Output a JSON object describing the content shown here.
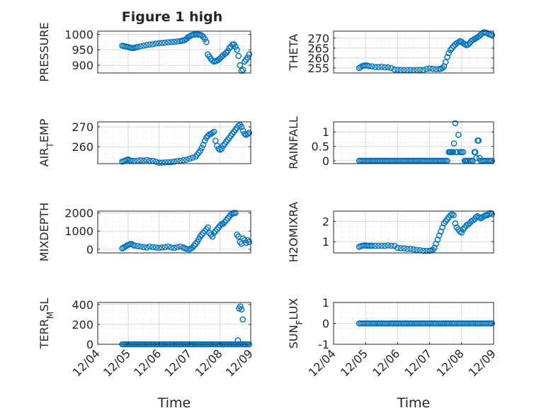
{
  "figure": {
    "title": "Figure 1 high",
    "marker_color": "#0072BD",
    "axes_color": "#262626",
    "grid_color": "#d9d9d9"
  },
  "chart_data": [
    {
      "type": "scatter",
      "ylabel": "PRESSURE",
      "ylim": [
        875,
        1010
      ],
      "yticks": [
        900,
        950,
        1000
      ],
      "ytick_labels": [
        "900",
        "950",
        "1000"
      ],
      "xlim": [
        0,
        5
      ],
      "xticks": [],
      "show_xticklabels": false,
      "x": [
        0.8,
        0.85,
        0.9,
        0.95,
        1.0,
        1.05,
        1.1,
        1.15,
        1.2,
        1.25,
        1.3,
        1.4,
        1.5,
        1.6,
        1.7,
        1.8,
        1.9,
        2.0,
        2.1,
        2.2,
        2.3,
        2.4,
        2.5,
        2.6,
        2.7,
        2.75,
        2.8,
        2.85,
        2.9,
        2.95,
        3.0,
        3.05,
        3.1,
        3.15,
        3.2,
        3.25,
        3.3,
        3.35,
        3.4,
        3.45,
        3.5,
        3.55,
        3.6,
        3.65,
        3.7,
        3.75,
        3.8,
        3.85,
        3.9,
        3.95,
        4.0,
        4.05,
        4.1,
        4.15,
        4.2,
        4.25,
        4.3,
        4.35,
        4.4,
        4.45,
        4.5,
        4.55,
        4.6,
        4.65,
        4.7,
        4.75,
        4.8,
        4.85,
        4.9,
        4.95
      ],
      "y": [
        963,
        962,
        961,
        960,
        959,
        957,
        956,
        955,
        956,
        958,
        959,
        961,
        963,
        965,
        967,
        968,
        970,
        971,
        972,
        973,
        974,
        975,
        976,
        977,
        978,
        979,
        980,
        982,
        985,
        990,
        993,
        996,
        998,
        999,
        1000,
        1000,
        999,
        998,
        996,
        992,
        985,
        975,
        935,
        928,
        920,
        915,
        912,
        913,
        915,
        918,
        922,
        928,
        932,
        936,
        940,
        946,
        955,
        960,
        966,
        968,
        960,
        950,
        930,
        900,
        882,
        885,
        912,
        918,
        925,
        935
      ]
    },
    {
      "type": "scatter",
      "ylabel": "THETA",
      "ylim": [
        252.5,
        273.5
      ],
      "yticks": [
        255,
        260,
        265,
        270
      ],
      "ytick_labels": [
        "255",
        "260",
        "265",
        "270"
      ],
      "xlim": [
        0,
        5
      ],
      "xticks": [],
      "show_xticklabels": false,
      "x": [
        0.8,
        0.85,
        0.9,
        0.95,
        1.0,
        1.05,
        1.1,
        1.2,
        1.3,
        1.4,
        1.5,
        1.6,
        1.7,
        1.8,
        1.9,
        2.0,
        2.1,
        2.2,
        2.3,
        2.4,
        2.5,
        2.6,
        2.7,
        2.8,
        2.9,
        3.0,
        3.1,
        3.2,
        3.3,
        3.35,
        3.4,
        3.45,
        3.5,
        3.55,
        3.6,
        3.65,
        3.7,
        3.75,
        3.8,
        3.85,
        3.9,
        3.95,
        4.0,
        4.05,
        4.1,
        4.15,
        4.2,
        4.25,
        4.3,
        4.35,
        4.4,
        4.45,
        4.5,
        4.55,
        4.6,
        4.65,
        4.7,
        4.75,
        4.8,
        4.85,
        4.9,
        4.95
      ],
      "y": [
        255,
        255.5,
        256,
        256.2,
        256.3,
        256.2,
        256,
        255.8,
        255.5,
        255.5,
        255.6,
        255.4,
        255.3,
        255,
        254.2,
        254.1,
        254,
        254,
        254,
        254,
        253.9,
        254,
        254.1,
        254,
        254.5,
        254.8,
        254.6,
        254.4,
        254.5,
        254.6,
        255,
        255.8,
        258,
        260.5,
        262.5,
        264,
        265,
        266,
        266.8,
        267.5,
        268,
        268.5,
        268.2,
        267.5,
        267,
        266.5,
        266.8,
        267.5,
        268.5,
        269,
        269.5,
        270,
        270.5,
        271,
        271.8,
        272.5,
        273,
        272.8,
        272.5,
        272,
        271.8,
        271.5
      ]
    },
    {
      "type": "scatter",
      "ylabel": "AIR_TEMP",
      "ylim": [
        251.5,
        272.5
      ],
      "yticks": [
        260,
        270
      ],
      "ytick_labels": [
        "260",
        "270"
      ],
      "xlim": [
        0,
        5
      ],
      "xticks": [],
      "show_xticklabels": false,
      "x": [
        0.8,
        0.85,
        0.9,
        0.95,
        1.0,
        1.05,
        1.1,
        1.2,
        1.3,
        1.4,
        1.5,
        1.6,
        1.7,
        1.8,
        1.9,
        2.0,
        2.1,
        2.2,
        2.3,
        2.4,
        2.5,
        2.6,
        2.7,
        2.8,
        2.9,
        3.0,
        3.1,
        3.2,
        3.25,
        3.3,
        3.35,
        3.4,
        3.45,
        3.5,
        3.55,
        3.6,
        3.65,
        3.7,
        3.75,
        3.8,
        3.85,
        3.9,
        3.95,
        4.0,
        4.05,
        4.1,
        4.15,
        4.2,
        4.25,
        4.3,
        4.35,
        4.4,
        4.45,
        4.5,
        4.55,
        4.6,
        4.65,
        4.7,
        4.75,
        4.8,
        4.85,
        4.9,
        4.95
      ],
      "y": [
        252.5,
        252.8,
        253,
        253.4,
        253.6,
        253.2,
        253,
        252.9,
        253,
        253.2,
        253.1,
        253.3,
        253,
        252.9,
        252.5,
        252,
        252,
        252.1,
        252.2,
        252.3,
        252.5,
        252.8,
        253,
        253.2,
        253.5,
        254,
        254.5,
        255,
        256,
        257,
        258,
        259.5,
        261,
        263,
        264.5,
        265.5,
        266.2,
        266.5,
        267,
        267.5,
        263,
        260.5,
        259,
        258.5,
        259,
        260.5,
        261.5,
        262.5,
        263.5,
        264.5,
        265.5,
        266.5,
        267.5,
        268.5,
        269.5,
        270.5,
        271,
        270,
        268,
        266.5,
        266,
        266.5,
        267
      ]
    },
    {
      "type": "scatter",
      "ylabel": "RAINFALL",
      "ylim": [
        -0.1,
        1.35
      ],
      "yticks": [
        0,
        0.5,
        1
      ],
      "ytick_labels": [
        "0",
        "0.5",
        "1"
      ],
      "xlim": [
        0,
        5
      ],
      "xticks": [],
      "show_xticklabels": false,
      "x": [
        0.8,
        0.85,
        0.9,
        0.95,
        1.0,
        1.05,
        1.1,
        1.15,
        1.2,
        1.25,
        1.3,
        1.35,
        1.4,
        1.45,
        1.5,
        1.55,
        1.6,
        1.65,
        1.7,
        1.75,
        1.8,
        1.85,
        1.9,
        1.95,
        2.0,
        2.05,
        2.1,
        2.15,
        2.2,
        2.25,
        2.3,
        2.35,
        2.4,
        2.45,
        2.5,
        2.55,
        2.6,
        2.65,
        2.7,
        2.75,
        2.8,
        2.85,
        2.9,
        2.95,
        3.0,
        3.05,
        3.1,
        3.15,
        3.2,
        3.25,
        3.3,
        3.35,
        3.4,
        3.45,
        3.5,
        3.55,
        3.6,
        3.63,
        3.66,
        3.7,
        3.73,
        3.76,
        3.8,
        3.83,
        3.86,
        3.9,
        3.95,
        4.0,
        4.05,
        4.1,
        4.13,
        4.16,
        4.2,
        4.25,
        4.3,
        4.35,
        4.4,
        4.43,
        4.46,
        4.5,
        4.53,
        4.56,
        4.6,
        4.65,
        4.7,
        4.75,
        4.8,
        4.85,
        4.9,
        4.95
      ],
      "y": [
        0,
        0,
        0,
        0,
        0,
        0,
        0,
        0,
        0,
        0,
        0,
        0,
        0,
        0,
        0,
        0,
        0,
        0,
        0,
        0,
        0,
        0,
        0,
        0,
        0,
        0,
        0,
        0,
        0,
        0,
        0,
        0,
        0,
        0,
        0,
        0,
        0,
        0,
        0,
        0,
        0,
        0,
        0,
        0,
        0,
        0,
        0,
        0,
        0,
        0,
        0,
        0,
        0,
        0,
        0,
        0,
        0.3,
        0.3,
        0.3,
        0.3,
        0.3,
        0.6,
        1.3,
        0.3,
        0.3,
        0.9,
        0.3,
        0.3,
        0.3,
        0,
        0,
        0,
        0,
        0,
        0,
        0,
        0.3,
        0.3,
        0.1,
        0.7,
        0.7,
        0.1,
        0,
        0,
        0,
        0,
        0,
        0,
        0,
        0
      ]
    },
    {
      "type": "scatter",
      "ylabel": "MIXDEPTH",
      "ylim": [
        -200,
        2100
      ],
      "yticks": [
        0,
        1000,
        2000
      ],
      "ytick_labels": [
        "0",
        "1000",
        "2000"
      ],
      "xlim": [
        0,
        5
      ],
      "xticks": [],
      "show_xticklabels": false,
      "x": [
        0.8,
        0.85,
        0.9,
        0.95,
        1.0,
        1.05,
        1.1,
        1.15,
        1.2,
        1.3,
        1.4,
        1.5,
        1.6,
        1.7,
        1.8,
        1.9,
        2.0,
        2.1,
        2.2,
        2.3,
        2.4,
        2.5,
        2.6,
        2.7,
        2.8,
        2.85,
        2.9,
        3.0,
        3.05,
        3.1,
        3.15,
        3.2,
        3.25,
        3.3,
        3.35,
        3.4,
        3.45,
        3.5,
        3.55,
        3.6,
        3.65,
        3.7,
        3.75,
        3.8,
        3.85,
        3.9,
        3.95,
        4.0,
        4.05,
        4.1,
        4.15,
        4.2,
        4.25,
        4.3,
        4.35,
        4.4,
        4.45,
        4.5,
        4.55,
        4.6,
        4.65,
        4.7,
        4.75,
        4.8,
        4.85,
        4.9,
        4.95
      ],
      "y": [
        50,
        100,
        150,
        200,
        250,
        280,
        300,
        250,
        200,
        180,
        150,
        120,
        100,
        150,
        120,
        100,
        80,
        100,
        120,
        150,
        100,
        80,
        120,
        150,
        100,
        50,
        20,
        0,
        50,
        100,
        200,
        300,
        400,
        550,
        700,
        800,
        900,
        1000,
        1100,
        1200,
        900,
        800,
        700,
        900,
        1000,
        1100,
        1200,
        1300,
        1400,
        1400,
        1500,
        1600,
        1700,
        1800,
        1900,
        1950,
        2000,
        2000,
        800,
        700,
        400,
        300,
        600,
        500,
        350,
        500,
        400
      ]
    },
    {
      "type": "scatter",
      "ylabel": "H2OMIXRA",
      "ylim": [
        0.45,
        2.5
      ],
      "yticks": [
        1,
        2
      ],
      "ytick_labels": [
        "1",
        "2"
      ],
      "xlim": [
        0,
        5
      ],
      "xticks": [],
      "show_xticklabels": false,
      "x": [
        0.8,
        0.85,
        0.9,
        0.95,
        1.0,
        1.05,
        1.1,
        1.15,
        1.2,
        1.3,
        1.4,
        1.5,
        1.6,
        1.7,
        1.8,
        1.9,
        2.0,
        2.1,
        2.2,
        2.3,
        2.4,
        2.5,
        2.6,
        2.7,
        2.8,
        2.9,
        3.0,
        3.05,
        3.1,
        3.15,
        3.2,
        3.25,
        3.3,
        3.35,
        3.4,
        3.45,
        3.5,
        3.55,
        3.6,
        3.65,
        3.7,
        3.75,
        3.8,
        3.85,
        3.9,
        3.95,
        4.0,
        4.05,
        4.1,
        4.15,
        4.2,
        4.25,
        4.3,
        4.35,
        4.4,
        4.45,
        4.5,
        4.55,
        4.6,
        4.65,
        4.7,
        4.75,
        4.8,
        4.85,
        4.9,
        4.95
      ],
      "y": [
        0.75,
        0.78,
        0.8,
        0.82,
        0.82,
        0.8,
        0.8,
        0.8,
        0.8,
        0.8,
        0.8,
        0.8,
        0.8,
        0.82,
        0.8,
        0.8,
        0.7,
        0.68,
        0.68,
        0.65,
        0.65,
        0.62,
        0.6,
        0.58,
        0.55,
        0.55,
        0.55,
        0.58,
        0.6,
        0.7,
        0.9,
        1.1,
        1.3,
        1.5,
        1.7,
        1.9,
        2.0,
        2.1,
        2.2,
        2.3,
        2.35,
        2.3,
        1.9,
        1.7,
        1.6,
        1.5,
        1.45,
        1.6,
        1.7,
        1.8,
        1.85,
        1.9,
        2.0,
        2.05,
        2.1,
        2.2,
        2.25,
        2.2,
        2.15,
        2.2,
        2.25,
        2.3,
        2.3,
        2.35,
        2.4,
        2.35
      ]
    },
    {
      "type": "scatter",
      "ylabel": "TERR_MSL",
      "ylim": [
        0,
        420
      ],
      "yticks": [
        0,
        200,
        400
      ],
      "ytick_labels": [
        "0",
        "200",
        "400"
      ],
      "xlim": [
        0,
        5
      ],
      "xticks": [
        0,
        1,
        2,
        3,
        4,
        5
      ],
      "xtick_labels": [
        "12/04",
        "12/05",
        "12/06",
        "12/07",
        "12/08",
        "12/09"
      ],
      "show_xticklabels": true,
      "xlabel": "Time",
      "x": [
        0.8,
        0.85,
        0.9,
        0.95,
        1.0,
        1.05,
        1.1,
        1.15,
        1.2,
        1.25,
        1.3,
        1.35,
        1.4,
        1.45,
        1.5,
        1.55,
        1.6,
        1.65,
        1.7,
        1.75,
        1.8,
        1.85,
        1.9,
        1.95,
        2.0,
        2.05,
        2.1,
        2.15,
        2.2,
        2.25,
        2.3,
        2.35,
        2.4,
        2.45,
        2.5,
        2.55,
        2.6,
        2.65,
        2.7,
        2.75,
        2.8,
        2.85,
        2.9,
        2.95,
        3.0,
        3.05,
        3.1,
        3.15,
        3.2,
        3.25,
        3.3,
        3.35,
        3.4,
        3.45,
        3.5,
        3.55,
        3.6,
        3.65,
        3.7,
        3.75,
        3.8,
        3.85,
        3.9,
        3.95,
        4.0,
        4.05,
        4.1,
        4.15,
        4.2,
        4.25,
        4.3,
        4.35,
        4.4,
        4.45,
        4.5,
        4.55,
        4.6,
        4.65,
        4.7,
        4.75,
        4.8,
        4.85,
        4.9,
        4.95,
        4.58,
        4.62,
        4.66,
        4.7,
        4.74
      ],
      "y": [
        0,
        0,
        0,
        0,
        0,
        0,
        0,
        0,
        0,
        0,
        0,
        0,
        0,
        0,
        0,
        0,
        0,
        0,
        0,
        0,
        0,
        0,
        0,
        0,
        0,
        0,
        0,
        0,
        0,
        0,
        0,
        0,
        0,
        0,
        0,
        0,
        0,
        0,
        0,
        0,
        0,
        0,
        0,
        0,
        0,
        0,
        0,
        0,
        0,
        0,
        0,
        0,
        0,
        0,
        0,
        0,
        0,
        0,
        0,
        0,
        0,
        0,
        0,
        0,
        0,
        0,
        0,
        0,
        0,
        0,
        0,
        0,
        0,
        0,
        0,
        0,
        0,
        0,
        0,
        0,
        0,
        0,
        0,
        0,
        40,
        360,
        380,
        350,
        250
      ]
    },
    {
      "type": "scatter",
      "ylabel": "SUN_FLUX",
      "ylim": [
        -1,
        1
      ],
      "yticks": [
        -1,
        0,
        1
      ],
      "ytick_labels": [
        "-1",
        "0",
        "1"
      ],
      "xlim": [
        0,
        5
      ],
      "xticks": [
        0,
        1,
        2,
        3,
        4,
        5
      ],
      "xtick_labels": [
        "12/04",
        "12/05",
        "12/06",
        "12/07",
        "12/08",
        "12/09"
      ],
      "show_xticklabels": true,
      "xlabel": "Time",
      "x": [
        0.8,
        0.85,
        0.9,
        0.95,
        1.0,
        1.05,
        1.1,
        1.15,
        1.2,
        1.25,
        1.3,
        1.35,
        1.4,
        1.45,
        1.5,
        1.55,
        1.6,
        1.65,
        1.7,
        1.75,
        1.8,
        1.85,
        1.9,
        1.95,
        2.0,
        2.05,
        2.1,
        2.15,
        2.2,
        2.25,
        2.3,
        2.35,
        2.4,
        2.45,
        2.5,
        2.55,
        2.6,
        2.65,
        2.7,
        2.75,
        2.8,
        2.85,
        2.9,
        2.95,
        3.0,
        3.05,
        3.1,
        3.15,
        3.2,
        3.25,
        3.3,
        3.35,
        3.4,
        3.45,
        3.5,
        3.55,
        3.6,
        3.65,
        3.7,
        3.75,
        3.8,
        3.85,
        3.9,
        3.95,
        4.0,
        4.05,
        4.1,
        4.15,
        4.2,
        4.25,
        4.3,
        4.35,
        4.4,
        4.45,
        4.5,
        4.55,
        4.6,
        4.65,
        4.7,
        4.75,
        4.8,
        4.85,
        4.9,
        4.95
      ],
      "y": [
        0,
        0,
        0,
        0,
        0,
        0,
        0,
        0,
        0,
        0,
        0,
        0,
        0,
        0,
        0,
        0,
        0,
        0,
        0,
        0,
        0,
        0,
        0,
        0,
        0,
        0,
        0,
        0,
        0,
        0,
        0,
        0,
        0,
        0,
        0,
        0,
        0,
        0,
        0,
        0,
        0,
        0,
        0,
        0,
        0,
        0,
        0,
        0,
        0,
        0,
        0,
        0,
        0,
        0,
        0,
        0,
        0,
        0,
        0,
        0,
        0,
        0,
        0,
        0,
        0,
        0,
        0,
        0,
        0,
        0,
        0,
        0,
        0,
        0,
        0,
        0,
        0,
        0,
        0,
        0,
        0,
        0,
        0,
        0
      ]
    }
  ]
}
